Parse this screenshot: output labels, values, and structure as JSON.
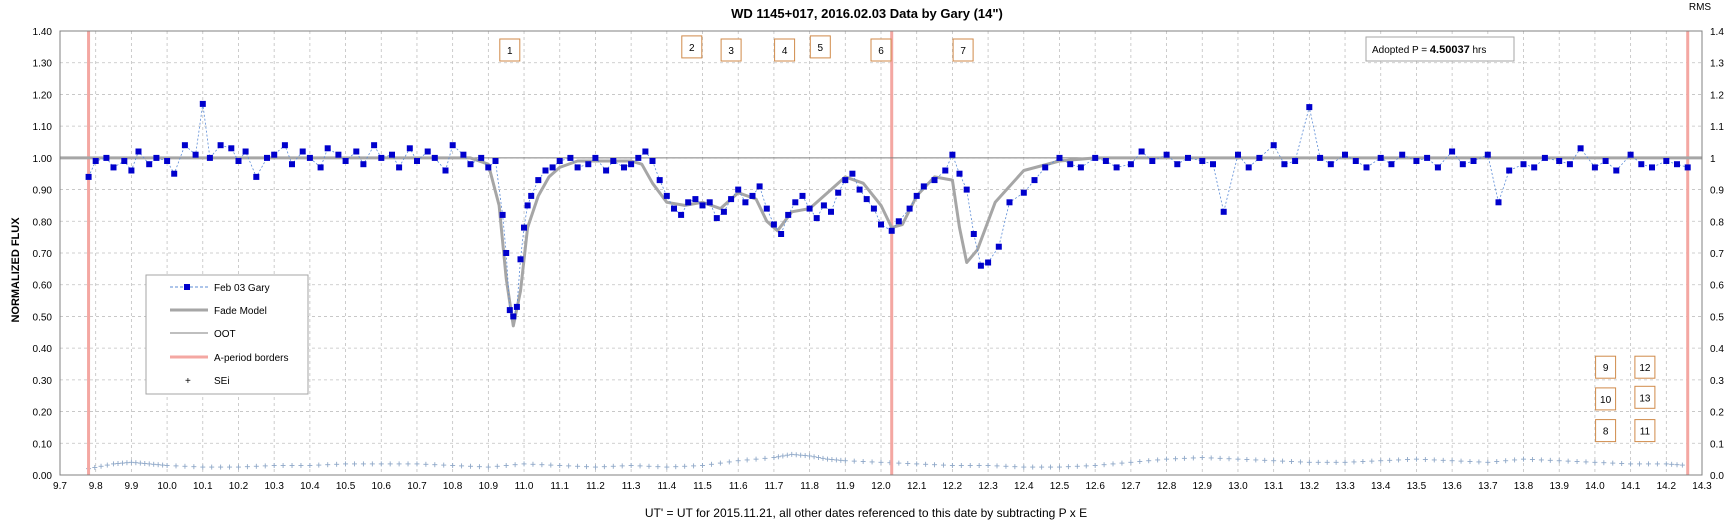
{
  "chart_data": {
    "type": "line",
    "title": "WD 1145+017, 2016.02.03 Data by Gary (14\")",
    "xlabel": "UT' = UT for 2015.11.21, all other dates referenced to this date by subtracting P x E",
    "ylabel": "NORMALIZED FLUX",
    "y2label": "RMS",
    "xlim": [
      9.7,
      14.3
    ],
    "ylim": [
      0.0,
      1.4
    ],
    "y2lim": [
      0.0,
      1.4
    ],
    "x_ticks": [
      "9.7",
      "9.8",
      "9.9",
      "10.0",
      "10.1",
      "10.2",
      "10.3",
      "10.4",
      "10.5",
      "10.6",
      "10.7",
      "10.8",
      "10.9",
      "11.0",
      "11.1",
      "11.2",
      "11.3",
      "11.4",
      "11.5",
      "11.6",
      "11.7",
      "11.8",
      "11.9",
      "12.0",
      "12.1",
      "12.2",
      "12.3",
      "12.4",
      "12.5",
      "12.6",
      "12.7",
      "12.8",
      "12.9",
      "13.0",
      "13.1",
      "13.2",
      "13.3",
      "13.4",
      "13.5",
      "13.6",
      "13.7",
      "13.8",
      "13.9",
      "14.0",
      "14.1",
      "14.2",
      "14.3"
    ],
    "y_ticks": [
      "0.00",
      "0.10",
      "0.20",
      "0.30",
      "0.40",
      "0.50",
      "0.60",
      "0.70",
      "0.80",
      "0.90",
      "1.00",
      "1.10",
      "1.20",
      "1.30",
      "1.40"
    ],
    "y2_ticks": [
      "0.0",
      "0.1",
      "0.2",
      "0.3",
      "0.4",
      "0.5",
      "0.6",
      "0.7",
      "0.8",
      "0.9",
      "1",
      "1.1",
      "1.2",
      "1.3",
      "1.4"
    ],
    "grid": true,
    "legend_position": "left-middle",
    "annotation": {
      "prefix": "Adopted P = ",
      "value": "4.50037",
      "suffix": " hrs"
    },
    "oot_level": 1.0,
    "a_period_borders": [
      9.78,
      12.03,
      14.26
    ],
    "fade_model": {
      "x": [
        9.7,
        10.85,
        10.9,
        10.93,
        10.95,
        10.97,
        10.99,
        11.01,
        11.04,
        11.07,
        11.1,
        11.15,
        11.2,
        11.25,
        11.3,
        11.33,
        11.36,
        11.4,
        11.45,
        11.5,
        11.55,
        11.6,
        11.65,
        11.68,
        11.71,
        11.75,
        11.8,
        11.85,
        11.9,
        11.95,
        12.0,
        12.03,
        12.06,
        12.1,
        12.15,
        12.2,
        12.22,
        12.24,
        12.27,
        12.32,
        12.4,
        12.5,
        12.6,
        14.3
      ],
      "y": [
        1.0,
        1.0,
        0.98,
        0.85,
        0.62,
        0.47,
        0.58,
        0.78,
        0.88,
        0.94,
        0.97,
        0.99,
        0.99,
        0.99,
        0.99,
        0.98,
        0.92,
        0.86,
        0.85,
        0.86,
        0.84,
        0.89,
        0.87,
        0.8,
        0.77,
        0.83,
        0.84,
        0.89,
        0.94,
        0.92,
        0.85,
        0.78,
        0.79,
        0.88,
        0.94,
        0.93,
        0.78,
        0.67,
        0.71,
        0.86,
        0.96,
        0.99,
        1.0,
        1.0
      ]
    },
    "series": [
      {
        "name": "Feb 03 Gary",
        "x": [
          9.78,
          9.8,
          9.83,
          9.85,
          9.88,
          9.9,
          9.92,
          9.95,
          9.97,
          10.0,
          10.02,
          10.05,
          10.08,
          10.1,
          10.12,
          10.15,
          10.18,
          10.2,
          10.22,
          10.25,
          10.28,
          10.3,
          10.33,
          10.35,
          10.38,
          10.4,
          10.43,
          10.45,
          10.48,
          10.5,
          10.53,
          10.55,
          10.58,
          10.6,
          10.63,
          10.65,
          10.68,
          10.7,
          10.73,
          10.75,
          10.78,
          10.8,
          10.83,
          10.85,
          10.88,
          10.9,
          10.92,
          10.94,
          10.95,
          10.96,
          10.97,
          10.98,
          10.99,
          11.0,
          11.01,
          11.02,
          11.04,
          11.06,
          11.08,
          11.1,
          11.13,
          11.15,
          11.18,
          11.2,
          11.23,
          11.25,
          11.28,
          11.3,
          11.32,
          11.34,
          11.36,
          11.38,
          11.4,
          11.42,
          11.44,
          11.46,
          11.48,
          11.5,
          11.52,
          11.54,
          11.56,
          11.58,
          11.6,
          11.62,
          11.64,
          11.66,
          11.68,
          11.7,
          11.72,
          11.74,
          11.76,
          11.78,
          11.8,
          11.82,
          11.84,
          11.86,
          11.88,
          11.9,
          11.92,
          11.94,
          11.96,
          11.98,
          12.0,
          12.03,
          12.05,
          12.08,
          12.1,
          12.12,
          12.15,
          12.18,
          12.2,
          12.22,
          12.24,
          12.26,
          12.28,
          12.3,
          12.33,
          12.36,
          12.4,
          12.43,
          12.46,
          12.5,
          12.53,
          12.56,
          12.6,
          12.63,
          12.66,
          12.7,
          12.73,
          12.76,
          12.8,
          12.83,
          12.86,
          12.9,
          12.93,
          12.96,
          13.0,
          13.03,
          13.06,
          13.1,
          13.13,
          13.16,
          13.2,
          13.23,
          13.26,
          13.3,
          13.33,
          13.36,
          13.4,
          13.43,
          13.46,
          13.5,
          13.53,
          13.56,
          13.6,
          13.63,
          13.66,
          13.7,
          13.73,
          13.76,
          13.8,
          13.83,
          13.86,
          13.9,
          13.93,
          13.96,
          14.0,
          14.03,
          14.06,
          14.1,
          14.13,
          14.16,
          14.2,
          14.23,
          14.26
        ],
        "y": [
          0.94,
          0.99,
          1.0,
          0.97,
          0.99,
          0.96,
          1.02,
          0.98,
          1.0,
          0.99,
          0.95,
          1.04,
          1.01,
          1.17,
          1.0,
          1.04,
          1.03,
          0.99,
          1.02,
          0.94,
          1.0,
          1.01,
          1.04,
          0.98,
          1.02,
          1.0,
          0.97,
          1.03,
          1.01,
          0.99,
          1.02,
          0.98,
          1.04,
          1.0,
          1.01,
          0.97,
          1.03,
          0.99,
          1.02,
          1.0,
          0.96,
          1.04,
          1.01,
          0.98,
          1.0,
          0.97,
          0.99,
          0.82,
          0.7,
          0.52,
          0.5,
          0.53,
          0.68,
          0.78,
          0.85,
          0.88,
          0.93,
          0.96,
          0.97,
          0.99,
          1.0,
          0.97,
          0.98,
          1.0,
          0.96,
          0.99,
          0.97,
          0.98,
          1.0,
          1.02,
          0.99,
          0.93,
          0.88,
          0.84,
          0.82,
          0.86,
          0.87,
          0.85,
          0.86,
          0.81,
          0.83,
          0.87,
          0.9,
          0.86,
          0.88,
          0.91,
          0.84,
          0.79,
          0.76,
          0.82,
          0.86,
          0.88,
          0.84,
          0.81,
          0.85,
          0.83,
          0.89,
          0.93,
          0.95,
          0.9,
          0.87,
          0.84,
          0.79,
          0.77,
          0.8,
          0.84,
          0.88,
          0.91,
          0.93,
          0.96,
          1.01,
          0.95,
          0.9,
          0.76,
          0.66,
          0.67,
          0.72,
          0.86,
          0.89,
          0.93,
          0.97,
          1.0,
          0.98,
          0.97,
          1.0,
          0.99,
          0.97,
          0.98,
          1.02,
          0.99,
          1.01,
          0.98,
          1.0,
          0.99,
          0.98,
          0.83,
          1.01,
          0.97,
          1.0,
          1.04,
          0.98,
          0.99,
          1.16,
          1.0,
          0.98,
          1.01,
          0.99,
          0.97,
          1.0,
          0.98,
          1.01,
          0.99,
          1.0,
          0.97,
          1.02,
          0.98,
          0.99,
          1.01,
          0.86,
          0.96,
          0.98,
          0.97,
          1.0,
          0.99,
          0.98,
          1.03,
          0.97,
          0.99,
          0.96,
          1.01,
          0.98,
          0.97,
          0.99,
          0.98,
          0.97
        ]
      },
      {
        "name": "SEi",
        "x": [
          9.78,
          9.85,
          9.9,
          9.95,
          10.0,
          10.1,
          10.2,
          10.3,
          10.4,
          10.5,
          10.6,
          10.7,
          10.8,
          10.9,
          11.0,
          11.1,
          11.2,
          11.3,
          11.4,
          11.5,
          11.6,
          11.7,
          11.75,
          11.8,
          11.85,
          11.9,
          12.0,
          12.1,
          12.2,
          12.3,
          12.4,
          12.5,
          12.6,
          12.7,
          12.8,
          12.9,
          13.0,
          13.1,
          13.2,
          13.3,
          13.4,
          13.5,
          13.6,
          13.7,
          13.8,
          13.9,
          14.0,
          14.1,
          14.2,
          14.26
        ],
        "y": [
          0.02,
          0.035,
          0.04,
          0.035,
          0.03,
          0.025,
          0.025,
          0.03,
          0.03,
          0.035,
          0.035,
          0.035,
          0.03,
          0.025,
          0.035,
          0.03,
          0.025,
          0.03,
          0.025,
          0.03,
          0.045,
          0.055,
          0.065,
          0.06,
          0.05,
          0.045,
          0.04,
          0.035,
          0.03,
          0.03,
          0.025,
          0.025,
          0.03,
          0.04,
          0.05,
          0.055,
          0.05,
          0.045,
          0.04,
          0.04,
          0.045,
          0.05,
          0.045,
          0.04,
          0.05,
          0.045,
          0.04,
          0.035,
          0.035,
          0.03
        ]
      }
    ],
    "legend": [
      "Feb 03 Gary",
      "Fade Model",
      "OOT",
      "A-period borders",
      "SEi"
    ],
    "markers": [
      {
        "label": "1",
        "x": 10.96,
        "y": 1.34
      },
      {
        "label": "2",
        "x": 11.47,
        "y": 1.35
      },
      {
        "label": "3",
        "x": 11.58,
        "y": 1.34
      },
      {
        "label": "4",
        "x": 11.73,
        "y": 1.34
      },
      {
        "label": "5",
        "x": 11.83,
        "y": 1.35
      },
      {
        "label": "6",
        "x": 12.0,
        "y": 1.34
      },
      {
        "label": "7",
        "x": 12.23,
        "y": 1.34
      },
      {
        "label": "9",
        "x": 14.03,
        "y": 0.34
      },
      {
        "label": "12",
        "x": 14.14,
        "y": 0.34
      },
      {
        "label": "10",
        "x": 14.03,
        "y": 0.24
      },
      {
        "label": "13",
        "x": 14.14,
        "y": 0.245
      },
      {
        "label": "8",
        "x": 14.03,
        "y": 0.14
      },
      {
        "label": "11",
        "x": 14.14,
        "y": 0.14
      }
    ],
    "colors": {
      "data": "#0000cc",
      "data_line": "#5b8bd6",
      "model": "#a6a6a6",
      "oot": "#7f7f7f",
      "border": "#f4a7a2",
      "sei": "#8fa8c8",
      "marker_box": "#d08a4a",
      "grid": "#c0c0c0"
    }
  }
}
